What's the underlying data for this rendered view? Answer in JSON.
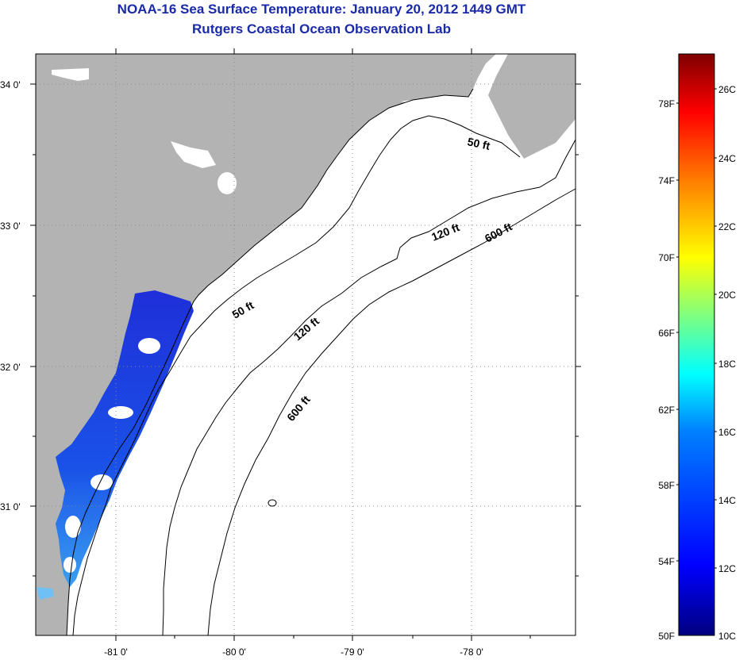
{
  "title": "NOAA-16 Sea Surface Temperature:  January 20, 2012 1449 GMT",
  "subtitle": "Rutgers Coastal Ocean Observation Lab",
  "map": {
    "lat_labels": [
      "34 0'",
      "33 0'",
      "32 0'",
      "31 0'"
    ],
    "lon_labels": [
      "-81 0'",
      "-80 0'",
      "-79 0'",
      "-78 0'"
    ],
    "contour_labels": [
      "50 ft",
      "120 ft",
      "600 ft",
      "50 ft",
      "120 ft",
      "600 ft"
    ]
  },
  "colorbar": {
    "fahrenheit_labels": [
      "78F",
      "74F",
      "70F",
      "66F",
      "62F",
      "58F",
      "54F",
      "50F"
    ],
    "celsius_labels": [
      "26C",
      "24C",
      "22C",
      "20C",
      "18C",
      "16C",
      "14C",
      "12C",
      "10C"
    ],
    "colors": [
      "#00007f",
      "#0000ff",
      "#007fff",
      "#00ffff",
      "#7fff7f",
      "#ffff00",
      "#ff7f00",
      "#ff0000",
      "#7f0000"
    ]
  }
}
